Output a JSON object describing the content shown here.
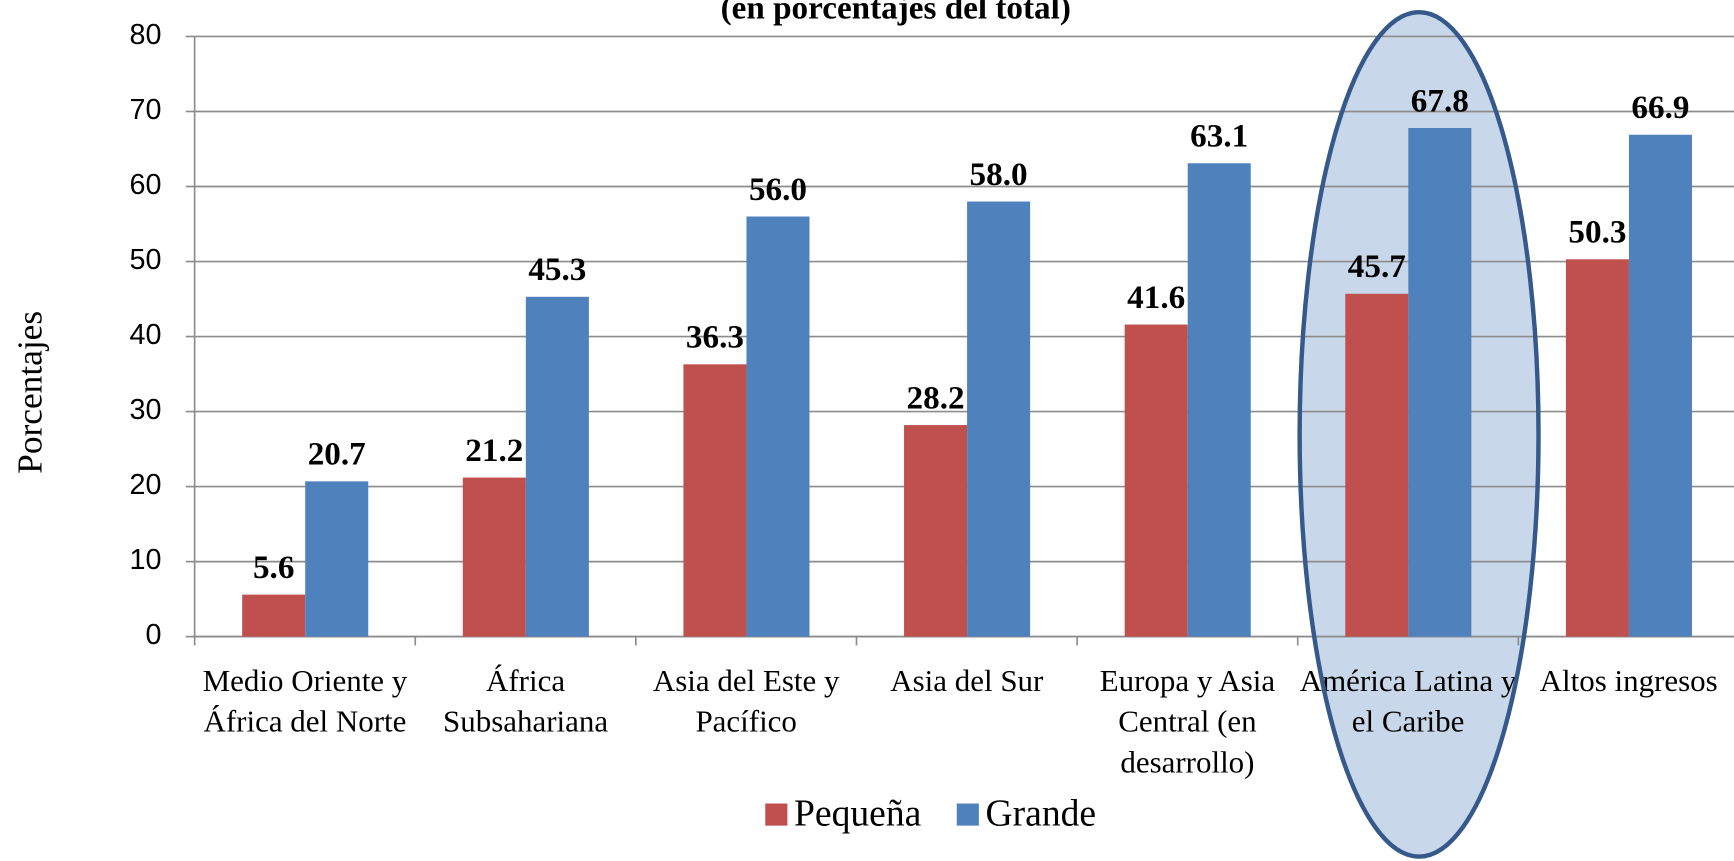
{
  "chart_data": {
    "type": "bar",
    "subtitle": "(en porcentajes del total)",
    "y_label": "Porcentajes",
    "categories": [
      "Medio Oriente y África del Norte",
      "África Subsahariana",
      "Asia del Este y Pacífico",
      "Asia del Sur",
      "Europa y Asia Central (en desarrollo)",
      "América Latina y el Caribe",
      "Altos ingresos"
    ],
    "series": [
      {
        "name": "Pequeña",
        "color": "#c0504d",
        "values": [
          5.6,
          21.2,
          36.3,
          28.2,
          41.6,
          45.7,
          50.3
        ]
      },
      {
        "name": "Grande",
        "color": "#4f81bd",
        "values": [
          20.7,
          45.3,
          56.0,
          58.0,
          63.1,
          67.8,
          66.9
        ],
        "value_labels": [
          "20.7",
          "45.3",
          "56.0",
          "58.0",
          "63.1",
          "67.8",
          "66.9"
        ]
      }
    ],
    "ylim": [
      0,
      80
    ],
    "yticks": [
      0,
      10,
      20,
      30,
      40,
      50,
      60,
      70,
      80
    ],
    "grid": true,
    "legend": "bottom",
    "highlight_category": 5
  }
}
